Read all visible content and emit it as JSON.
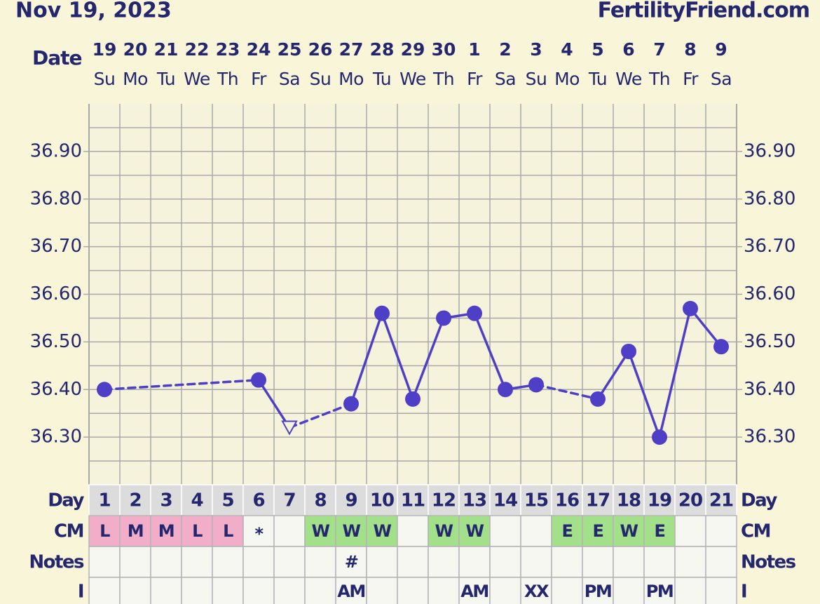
{
  "header": {
    "date": "Nov 19, 2023",
    "site": "FertilityFriend.com"
  },
  "chart_data": {
    "type": "line",
    "date_label": "Date",
    "dates": [
      "19",
      "20",
      "21",
      "22",
      "23",
      "24",
      "25",
      "26",
      "27",
      "28",
      "29",
      "30",
      "1",
      "2",
      "3",
      "4",
      "5",
      "6",
      "7",
      "8",
      "9"
    ],
    "weekdays": [
      "Su",
      "Mo",
      "Tu",
      "We",
      "Th",
      "Fr",
      "Sa",
      "Su",
      "Mo",
      "Tu",
      "We",
      "Th",
      "Fr",
      "Sa",
      "Su",
      "Mo",
      "Tu",
      "We",
      "Th",
      "Fr",
      "Sa"
    ],
    "values": [
      36.4,
      null,
      null,
      null,
      null,
      36.42,
      36.32,
      null,
      36.37,
      36.56,
      36.38,
      36.55,
      36.56,
      36.4,
      36.41,
      null,
      36.38,
      36.48,
      36.3,
      36.57,
      36.49
    ],
    "markers": [
      "circle",
      null,
      null,
      null,
      null,
      "circle",
      "triangle-open",
      null,
      "circle",
      "circle",
      "circle",
      "circle",
      "circle",
      "circle",
      "circle",
      null,
      "circle",
      "circle",
      "circle",
      "circle",
      "circle"
    ],
    "color": "#4f3fc6",
    "ylim": [
      36.2,
      37.0
    ],
    "yticks": [
      {
        "value": 36.3,
        "label": "36.30"
      },
      {
        "value": 36.4,
        "label": "36.40"
      },
      {
        "value": 36.5,
        "label": "36.50"
      },
      {
        "value": 36.6,
        "label": "36.60"
      },
      {
        "value": 36.7,
        "label": "36.70"
      },
      {
        "value": 36.8,
        "label": "36.80"
      },
      {
        "value": 36.9,
        "label": "36.90"
      }
    ],
    "yminor": [
      36.25,
      36.35,
      36.45,
      36.55,
      36.65,
      36.75,
      36.85,
      36.95
    ],
    "grid": true
  },
  "table": {
    "cell_colors": {
      "L": "#f2aec8",
      "M": "#f2aec8",
      "W": "#a3e08a",
      "E": "#a3e08a"
    },
    "rows": [
      {
        "label": "Day",
        "cells": [
          1,
          2,
          3,
          4,
          5,
          6,
          7,
          8,
          9,
          10,
          11,
          12,
          13,
          14,
          15,
          16,
          17,
          18,
          19,
          20,
          21
        ]
      },
      {
        "label": "CM",
        "cells": [
          "L",
          "M",
          "M",
          "L",
          "L",
          "*",
          null,
          "W",
          "W",
          "W",
          null,
          "W",
          "W",
          null,
          null,
          "E",
          "E",
          "W",
          "E",
          null,
          null
        ]
      },
      {
        "label": "Notes",
        "cells": [
          null,
          null,
          null,
          null,
          null,
          null,
          null,
          null,
          "#",
          null,
          null,
          null,
          null,
          null,
          null,
          null,
          null,
          null,
          null,
          null,
          null
        ]
      },
      {
        "label": "I",
        "cells": [
          null,
          null,
          null,
          null,
          null,
          null,
          null,
          null,
          "AM",
          null,
          null,
          null,
          "AM",
          null,
          "XX",
          null,
          "PM",
          null,
          "PM",
          null,
          null
        ]
      }
    ]
  }
}
